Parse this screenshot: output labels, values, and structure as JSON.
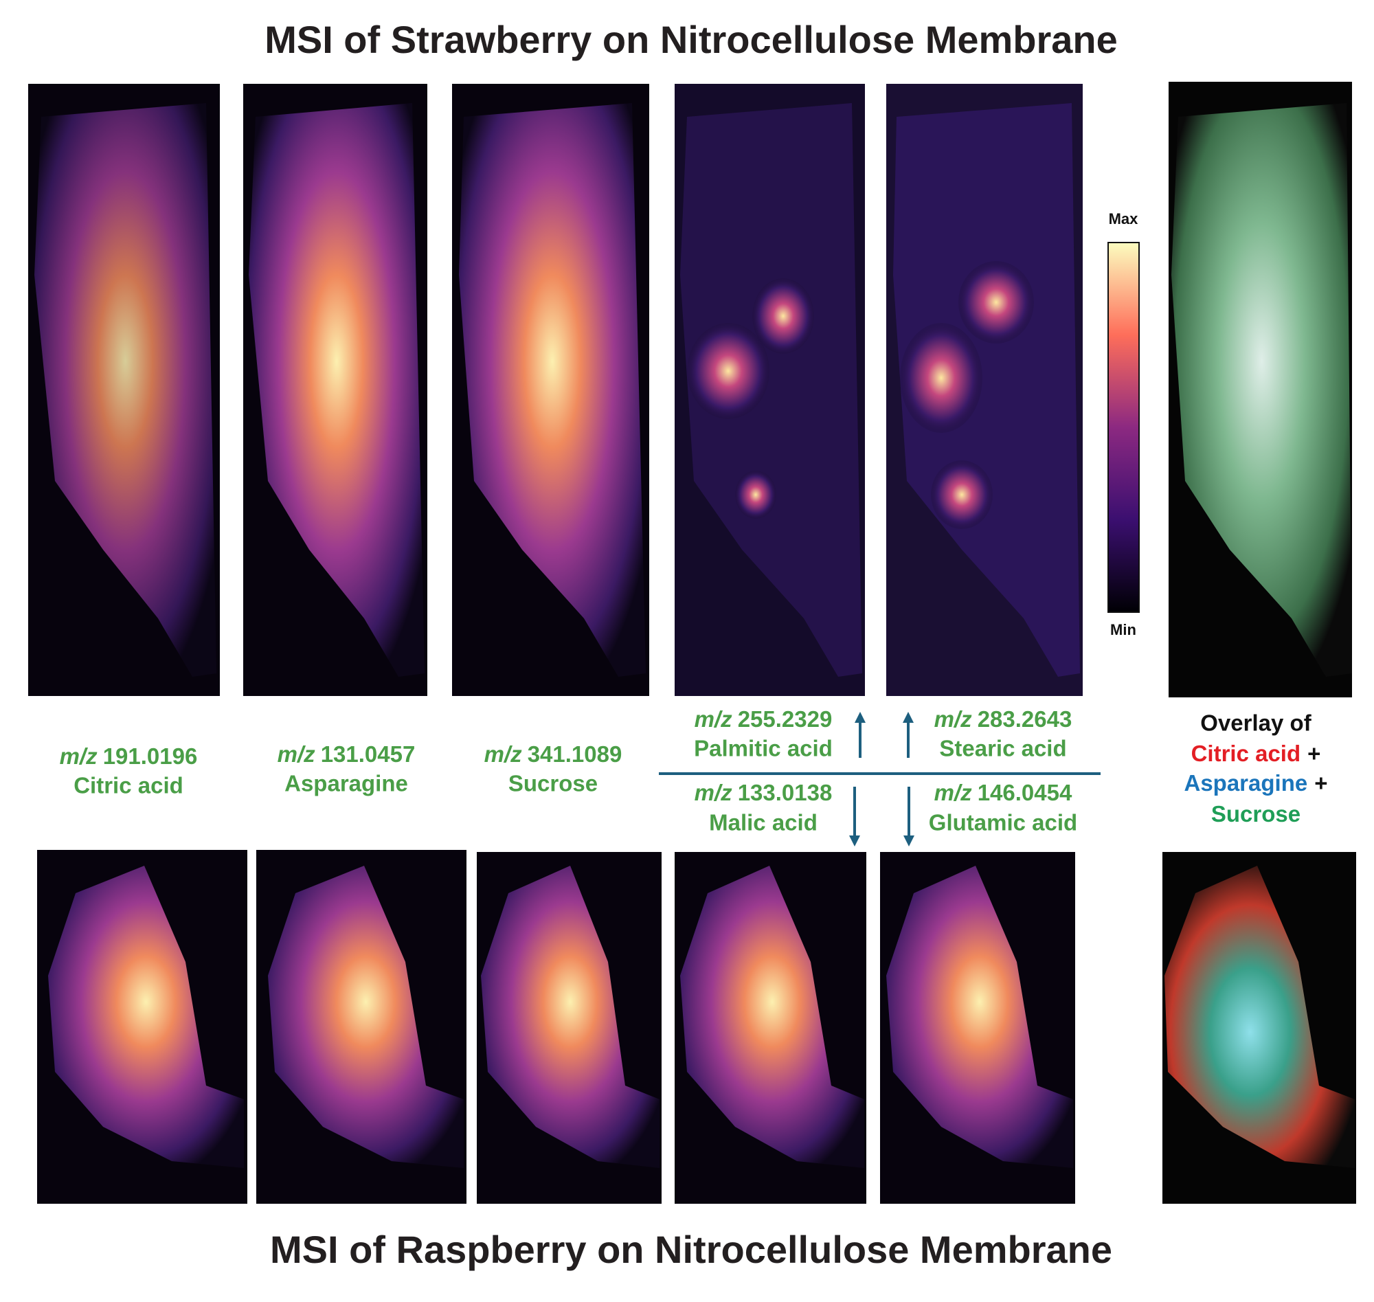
{
  "header": {
    "title": "MSI of Strawberry on Nitrocellulose Membrane"
  },
  "footer": {
    "title": "MSI of Raspberry on Nitrocellulose Membrane"
  },
  "colorbar": {
    "max_label": "Max",
    "min_label": "Min"
  },
  "shared_labels": [
    {
      "mz_unit": "m/z",
      "mz": "191.0196",
      "name": "Citric acid"
    },
    {
      "mz_unit": "m/z",
      "mz": "131.0457",
      "name": "Asparagine"
    },
    {
      "mz_unit": "m/z",
      "mz": "341.1089",
      "name": "Sucrose"
    }
  ],
  "strawberry_labels": [
    {
      "mz_unit": "m/z",
      "mz": "255.2329",
      "name": "Palmitic acid"
    },
    {
      "mz_unit": "m/z",
      "mz": "283.2643",
      "name": "Stearic acid"
    }
  ],
  "raspberry_labels": [
    {
      "mz_unit": "m/z",
      "mz": "133.0138",
      "name": "Malic acid"
    },
    {
      "mz_unit": "m/z",
      "mz": "146.0454",
      "name": "Glutamic acid"
    }
  ],
  "overlay": {
    "heading": "Overlay of",
    "joiner": "+",
    "items": [
      {
        "name": "Citric acid",
        "color": "#e31e24"
      },
      {
        "name": "Asparagine",
        "color": "#1b75bb"
      },
      {
        "name": "Sucrose",
        "color": "#1f9e57"
      }
    ]
  }
}
